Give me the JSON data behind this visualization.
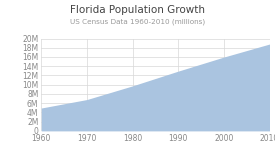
{
  "title": "Florida Population Growth",
  "subtitle": "US Census Data 1960-2010 (millions)",
  "years": [
    1960,
    1970,
    1980,
    1990,
    2000,
    2010
  ],
  "population": [
    4951560,
    6789443,
    9746961,
    12937926,
    15982378,
    18801310
  ],
  "fill_color": "#aac4e0",
  "line_color": "#aac4e0",
  "bg_color": "#ffffff",
  "grid_color": "#d8d8d8",
  "xlim": [
    1960,
    2010
  ],
  "ylim": [
    0,
    20000000
  ],
  "ytick_vals": [
    0,
    2000000,
    4000000,
    6000000,
    8000000,
    10000000,
    12000000,
    14000000,
    16000000,
    18000000,
    20000000
  ],
  "ytick_labels": [
    "0",
    "2M",
    "4M",
    "6M",
    "8M",
    "10M",
    "12M",
    "14M",
    "16M",
    "18M",
    "20M"
  ],
  "xtick_vals": [
    1960,
    1970,
    1980,
    1990,
    2000,
    2010
  ],
  "title_fontsize": 7.5,
  "subtitle_fontsize": 5.2,
  "tick_fontsize": 5.5
}
